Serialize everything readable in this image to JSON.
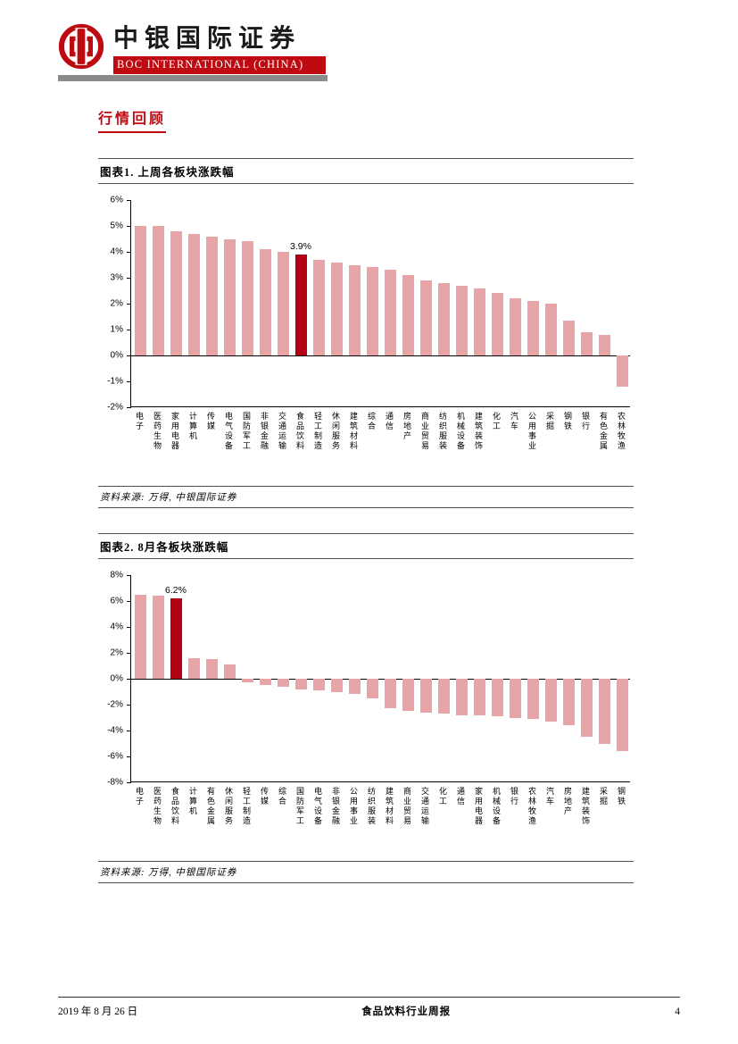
{
  "header": {
    "company_name_cn": "中银国际证券",
    "company_name_en": "BOC INTERNATIONAL (CHINA)",
    "logo_icon": "boc-coin-logo",
    "brand_red": "#BE0A11",
    "gray_bar_color": "#8A8A8A"
  },
  "section": {
    "title": "行情回顾"
  },
  "figures": [
    {
      "title": "图表1. 上周各板块涨跌幅",
      "source": "资料来源: 万得, 中银国际证券"
    },
    {
      "title": "图表2. 8月各板块涨跌幅",
      "source": "资料来源: 万得, 中银国际证券"
    }
  ],
  "chart_data": [
    {
      "type": "bar",
      "title": "上周各板块涨跌幅",
      "categories": [
        "电子",
        "医药生物",
        "家用电器",
        "计算机",
        "传媒",
        "电气设备",
        "国防军工",
        "非银金融",
        "交通运输",
        "食品饮料",
        "轻工制造",
        "休闲服务",
        "建筑材料",
        "综合",
        "通信",
        "房地产",
        "商业贸易",
        "纺织服装",
        "机械设备",
        "建筑装饰",
        "化工",
        "汽车",
        "公用事业",
        "采掘",
        "钢铁",
        "银行",
        "有色金属",
        "农林牧渔"
      ],
      "values": [
        5.0,
        5.0,
        4.8,
        4.7,
        4.6,
        4.5,
        4.4,
        4.1,
        4.0,
        3.9,
        3.7,
        3.6,
        3.5,
        3.4,
        3.3,
        3.1,
        2.9,
        2.8,
        2.7,
        2.6,
        2.4,
        2.2,
        2.1,
        2.0,
        1.35,
        0.9,
        0.8,
        -1.2
      ],
      "highlight_index": 9,
      "highlight_category": "食品饮料",
      "highlight_label": "3.9%",
      "ylim": [
        -2,
        6
      ],
      "yticks": [
        6,
        5,
        4,
        3,
        2,
        1,
        0,
        -1,
        -2
      ],
      "ytick_labels": [
        "6%",
        "5%",
        "4%",
        "3%",
        "2%",
        "1%",
        "0%",
        "-1%",
        "-2%"
      ],
      "bar_color": "#E8A5A8",
      "highlight_color": "#B20015",
      "grid": false,
      "legend": "none"
    },
    {
      "type": "bar",
      "title": "8月各板块涨跌幅",
      "categories": [
        "电子",
        "医药生物",
        "食品饮料",
        "计算机",
        "有色金属",
        "休闲服务",
        "轻工制造",
        "传媒",
        "综合",
        "国防军工",
        "电气设备",
        "非银金融",
        "公用事业",
        "纺织服装",
        "建筑材料",
        "商业贸易",
        "交通运输",
        "化工",
        "通信",
        "家用电器",
        "机械设备",
        "银行",
        "农林牧渔",
        "汽车",
        "房地产",
        "建筑装饰",
        "采掘",
        "钢铁"
      ],
      "values": [
        6.5,
        6.4,
        6.2,
        1.6,
        1.5,
        1.1,
        -0.3,
        -0.5,
        -0.6,
        -0.8,
        -0.9,
        -1.0,
        -1.2,
        -1.5,
        -2.3,
        -2.5,
        -2.6,
        -2.7,
        -2.8,
        -2.8,
        -2.9,
        -3.0,
        -3.1,
        -3.3,
        -3.6,
        -4.5,
        -5.0,
        -5.6
      ],
      "highlight_index": 2,
      "highlight_category": "食品饮料",
      "highlight_label": "6.2%",
      "ylim": [
        -8,
        8
      ],
      "yticks": [
        8,
        6,
        4,
        2,
        0,
        -2,
        -4,
        -6,
        -8
      ],
      "ytick_labels": [
        "8%",
        "6%",
        "4%",
        "2%",
        "0%",
        "-2%",
        "-4%",
        "-6%",
        "-8%"
      ],
      "bar_color": "#E8A5A8",
      "highlight_color": "#B20015",
      "grid": false,
      "legend": "none"
    }
  ],
  "footer": {
    "date": "2019 年 8 月 26 日",
    "report_title": "食品饮料行业周报",
    "page_number": "4"
  }
}
